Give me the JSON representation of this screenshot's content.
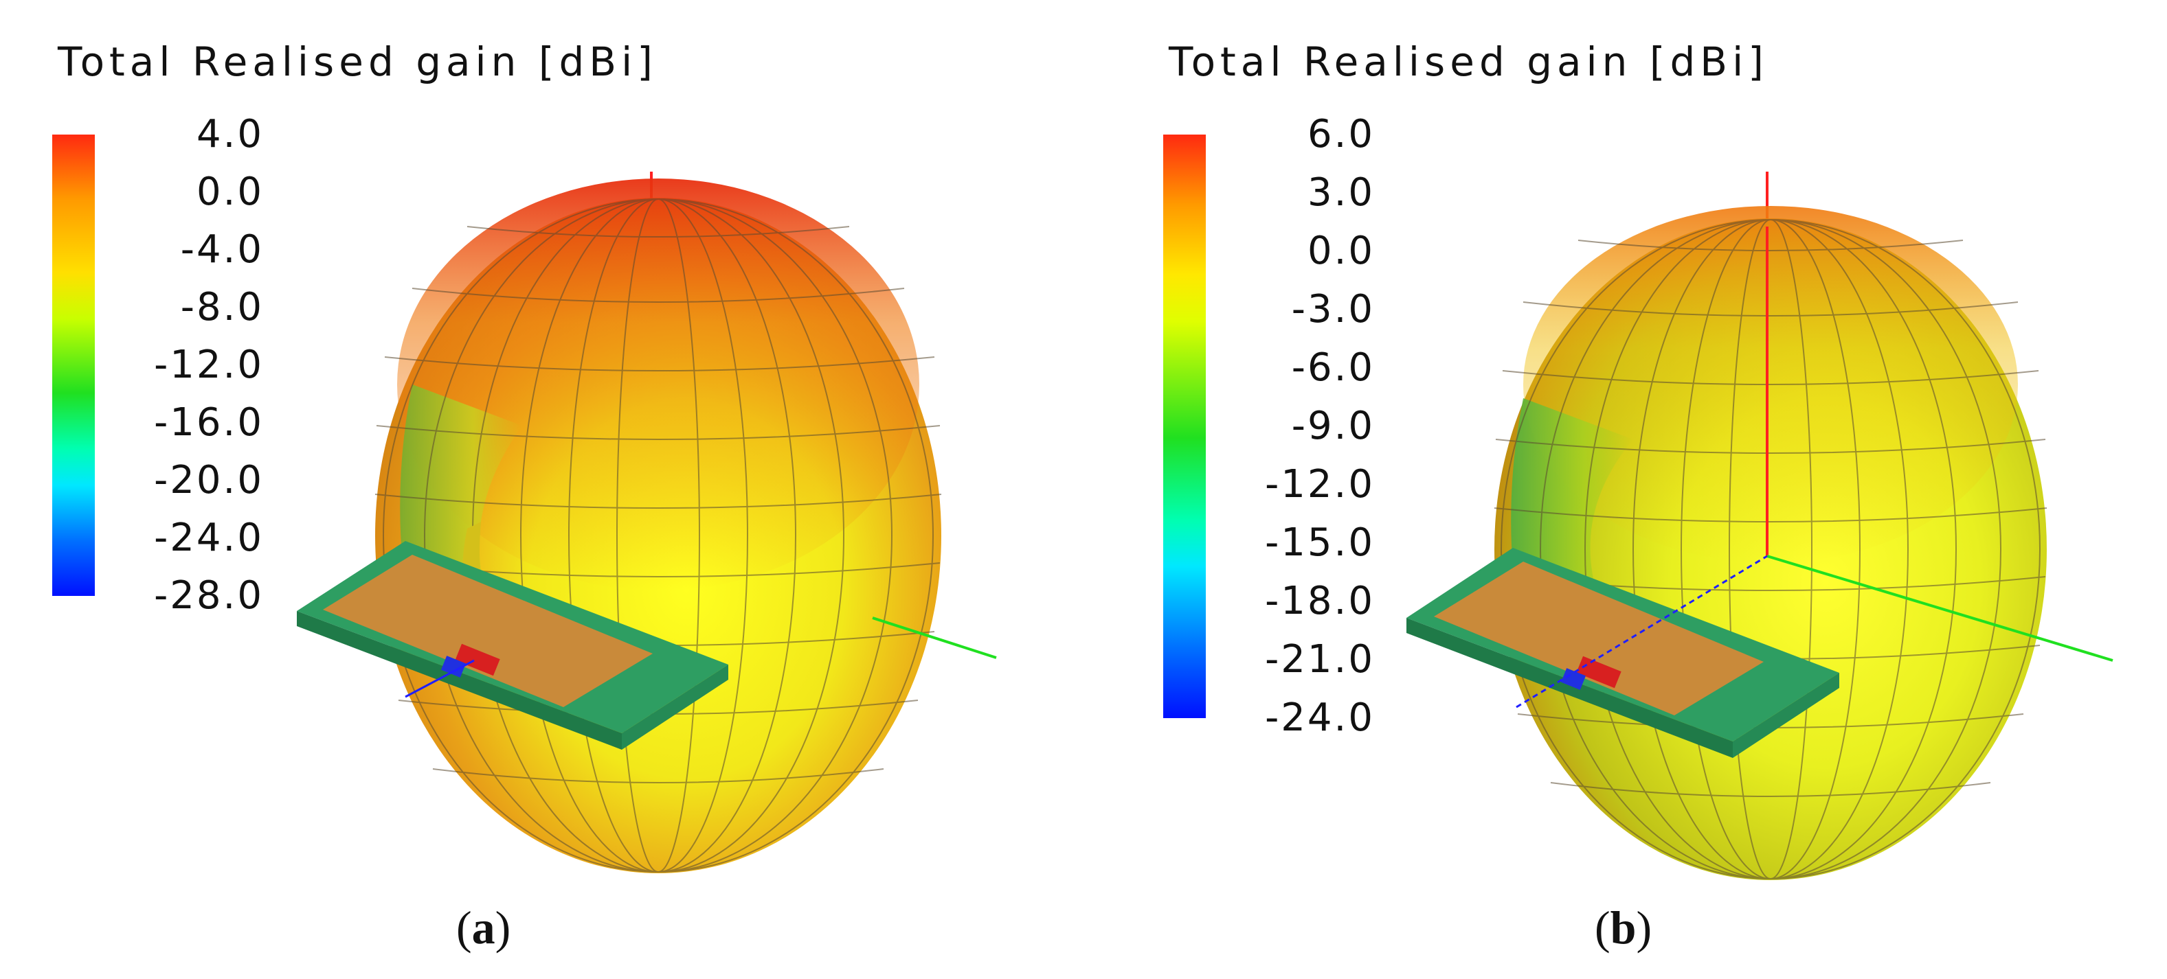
{
  "panels": [
    {
      "title": "Total Realised gain [dBi]",
      "colorbar_ticks": [
        "4.0",
        "0.0",
        "-4.0",
        "-8.0",
        "-12.0",
        "-16.0",
        "-20.0",
        "-24.0",
        "-28.0"
      ],
      "caption_open": "(",
      "caption_letter": "a",
      "caption_close": ")"
    },
    {
      "title": "Total Realised gain [dBi]",
      "colorbar_ticks": [
        "6.0",
        "3.0",
        "0.0",
        "-3.0",
        "-6.0",
        "-9.0",
        "-12.0",
        "-15.0",
        "-18.0",
        "-21.0",
        "-24.0"
      ],
      "caption_open": "(",
      "caption_letter": "b",
      "caption_close": ")"
    }
  ],
  "colors": {
    "max": "#ff2a10",
    "high": "#ff9a00",
    "mid": "#ffff00",
    "lowmid": "#00e000",
    "low": "#00ffff",
    "min": "#0010ff",
    "board": "#2e9e62",
    "patch": "#c98a3a",
    "axis_x": "#2020ff",
    "axis_y": "#20e020",
    "axis_z": "#ff2020"
  }
}
